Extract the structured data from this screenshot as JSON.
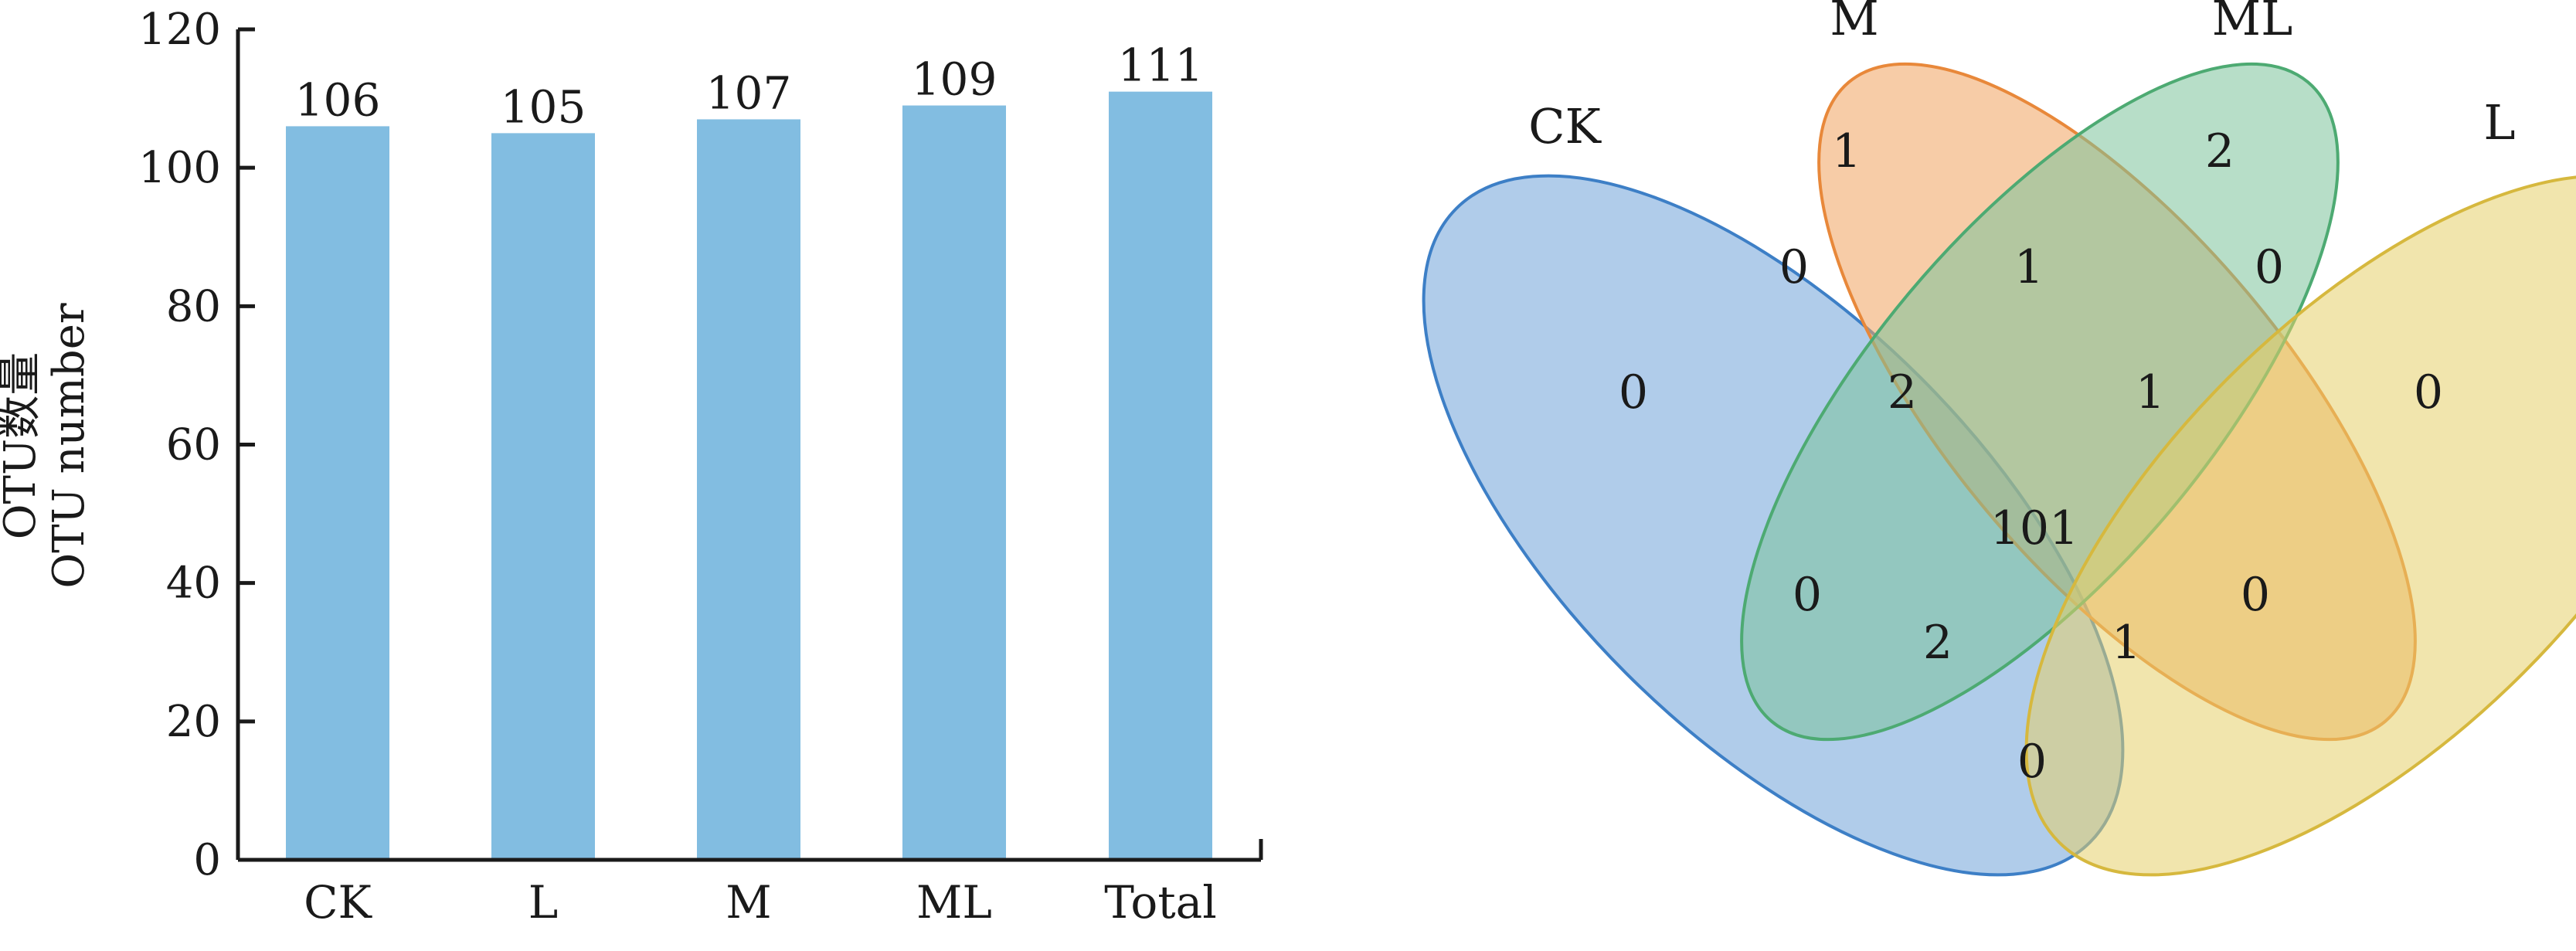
{
  "chart_data": [
    {
      "type": "bar",
      "title": "",
      "categories": [
        "CK",
        "L",
        "M",
        "ML",
        "Total"
      ],
      "values": [
        106,
        105,
        107,
        109,
        111
      ],
      "data_labels": [
        "106",
        "105",
        "107",
        "109",
        "111"
      ],
      "ylabel_zh": "OTU数量",
      "ylabel_en": "OTU number",
      "xlabel": "",
      "ylim": [
        0,
        120
      ],
      "yticks": [
        0,
        20,
        40,
        60,
        80,
        100,
        120
      ],
      "ytick_labels": [
        "0",
        "20",
        "40",
        "60",
        "80",
        "100",
        "120"
      ],
      "bar_color": "#82bde1",
      "grid": false
    },
    {
      "type": "venn",
      "sets": [
        {
          "name": "CK",
          "fill": "#6fa3d8",
          "stroke": "#3d7fc6"
        },
        {
          "name": "M",
          "fill": "#f0a35e",
          "stroke": "#e8883a"
        },
        {
          "name": "ML",
          "fill": "#7cc39a",
          "stroke": "#4daa72"
        },
        {
          "name": "L",
          "fill": "#e6cf6a",
          "stroke": "#d6b83e"
        }
      ],
      "regions": [
        {
          "sets": [
            "CK"
          ],
          "count": 0,
          "label": "0"
        },
        {
          "sets": [
            "M"
          ],
          "count": 1,
          "label": "1"
        },
        {
          "sets": [
            "ML"
          ],
          "count": 2,
          "label": "2"
        },
        {
          "sets": [
            "L"
          ],
          "count": 0,
          "label": "0"
        },
        {
          "sets": [
            "CK",
            "M"
          ],
          "count": 0,
          "label": "0"
        },
        {
          "sets": [
            "M",
            "ML"
          ],
          "count": 1,
          "label": "1"
        },
        {
          "sets": [
            "ML",
            "L"
          ],
          "count": 0,
          "label": "0"
        },
        {
          "sets": [
            "CK",
            "M",
            "ML"
          ],
          "count": 2,
          "label": "2"
        },
        {
          "sets": [
            "M",
            "ML",
            "L"
          ],
          "count": 1,
          "label": "1"
        },
        {
          "sets": [
            "CK",
            "M",
            "ML",
            "L"
          ],
          "count": 101,
          "label": "101"
        },
        {
          "sets": [
            "CK",
            "ML"
          ],
          "count": 0,
          "label": "0"
        },
        {
          "sets": [
            "M",
            "L"
          ],
          "count": 0,
          "label": "0"
        },
        {
          "sets": [
            "CK",
            "ML",
            "L"
          ],
          "count": 2,
          "label": "2"
        },
        {
          "sets": [
            "CK",
            "M",
            "L"
          ],
          "count": 1,
          "label": "1"
        },
        {
          "sets": [
            "CK",
            "L"
          ],
          "count": 0,
          "label": "0"
        }
      ]
    }
  ]
}
